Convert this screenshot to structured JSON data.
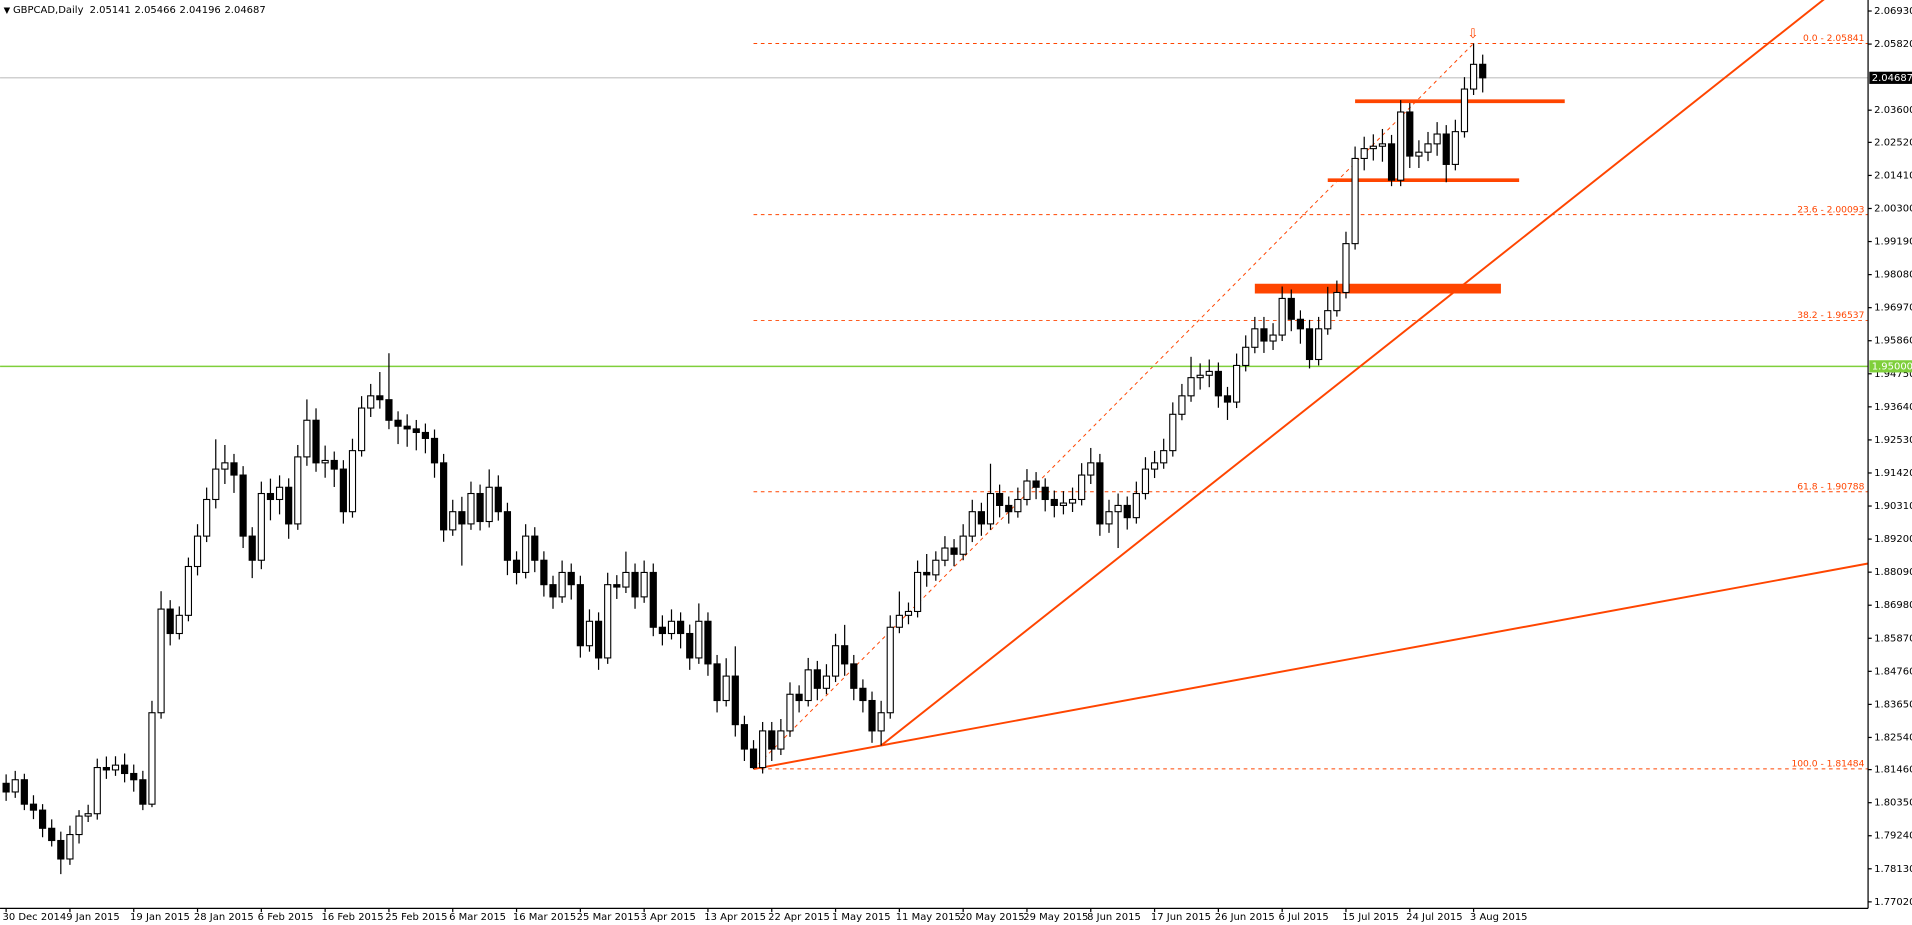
{
  "chart_data": {
    "type": "candlestick",
    "symbol": "GBPCAD,Daily",
    "ylim": [
      1.768,
      2.073
    ],
    "yticks": [
      {
        "value": 2.0693,
        "label": "2.06930"
      },
      {
        "value": 2.0582,
        "label": "2.05820"
      },
      {
        "value": 2.036,
        "label": "2.03600"
      },
      {
        "value": 2.0252,
        "label": "2.02520"
      },
      {
        "value": 2.0141,
        "label": "2.01410"
      },
      {
        "value": 2.003,
        "label": "2.00300"
      },
      {
        "value": 1.9919,
        "label": "1.99190"
      },
      {
        "value": 1.9808,
        "label": "1.98080"
      },
      {
        "value": 1.9697,
        "label": "1.96970"
      },
      {
        "value": 1.9586,
        "label": "1.95860"
      },
      {
        "value": 1.9475,
        "label": "1.94750"
      },
      {
        "value": 1.9364,
        "label": "1.93640"
      },
      {
        "value": 1.9253,
        "label": "1.92530"
      },
      {
        "value": 1.9142,
        "label": "1.91420"
      },
      {
        "value": 1.9031,
        "label": "1.90310"
      },
      {
        "value": 1.892,
        "label": "1.89200"
      },
      {
        "value": 1.8809,
        "label": "1.88090"
      },
      {
        "value": 1.8698,
        "label": "1.86980"
      },
      {
        "value": 1.8587,
        "label": "1.85870"
      },
      {
        "value": 1.8476,
        "label": "1.84760"
      },
      {
        "value": 1.8365,
        "label": "1.83650"
      },
      {
        "value": 1.8254,
        "label": "1.82540"
      },
      {
        "value": 1.8146,
        "label": "1.81460"
      },
      {
        "value": 1.8035,
        "label": "1.80350"
      },
      {
        "value": 1.7924,
        "label": "1.79240"
      },
      {
        "value": 1.7813,
        "label": "1.78130"
      },
      {
        "value": 1.7702,
        "label": "1.77020"
      }
    ],
    "xticks": [
      {
        "value": 0,
        "label": "30 Dec 2014"
      },
      {
        "value": 7,
        "label": "9 Jan 2015"
      },
      {
        "value": 14,
        "label": "19 Jan 2015"
      },
      {
        "value": 21,
        "label": "28 Jan 2015"
      },
      {
        "value": 28,
        "label": "6 Feb 2015"
      },
      {
        "value": 35,
        "label": "16 Feb 2015"
      },
      {
        "value": 42,
        "label": "25 Feb 2015"
      },
      {
        "value": 49,
        "label": "6 Mar 2015"
      },
      {
        "value": 56,
        "label": "16 Mar 2015"
      },
      {
        "value": 63,
        "label": "25 Mar 2015"
      },
      {
        "value": 70,
        "label": "3 Apr 2015"
      },
      {
        "value": 77,
        "label": "13 Apr 2015"
      },
      {
        "value": 84,
        "label": "22 Apr 2015"
      },
      {
        "value": 91,
        "label": "1 May 2015"
      },
      {
        "value": 98,
        "label": "11 May 2015"
      },
      {
        "value": 105,
        "label": "20 May 2015"
      },
      {
        "value": 112,
        "label": "29 May 2015"
      },
      {
        "value": 119,
        "label": "8 Jun 2015"
      },
      {
        "value": 126,
        "label": "17 Jun 2015"
      },
      {
        "value": 133,
        "label": "26 Jun 2015"
      },
      {
        "value": 140,
        "label": "6 Jul 2015"
      },
      {
        "value": 147,
        "label": "15 Jul 2015"
      },
      {
        "value": 154,
        "label": "24 Jul 2015"
      },
      {
        "value": 161,
        "label": "3 Aug 2015"
      }
    ],
    "up_color": "#ffffff",
    "down_color": "#000000",
    "ohlc": [
      [
        1.81,
        1.813,
        1.8041,
        1.8071
      ],
      [
        1.8071,
        1.8142,
        1.8051,
        1.8112
      ],
      [
        1.8112,
        1.8132,
        1.801,
        1.803
      ],
      [
        1.803,
        1.806,
        1.798,
        1.801
      ],
      [
        1.801,
        1.803,
        1.7919,
        1.7949
      ],
      [
        1.7949,
        1.7979,
        1.7888,
        1.7908
      ],
      [
        1.7908,
        1.7938,
        1.7795,
        1.7846
      ],
      [
        1.7846,
        1.7958,
        1.7826,
        1.7928
      ],
      [
        1.7928,
        1.801,
        1.7898,
        1.799
      ],
      [
        1.799,
        1.8028,
        1.797,
        1.7998
      ],
      [
        1.7998,
        1.8183,
        1.7978,
        1.8153
      ],
      [
        1.8153,
        1.819,
        1.8115,
        1.8145
      ],
      [
        1.8145,
        1.8191,
        1.8125,
        1.8161
      ],
      [
        1.8161,
        1.82,
        1.8103,
        1.8133
      ],
      [
        1.8133,
        1.8163,
        1.8072,
        1.8112
      ],
      [
        1.8112,
        1.8142,
        1.801,
        1.803
      ],
      [
        1.803,
        1.8377,
        1.802,
        1.8337
      ],
      [
        1.8337,
        1.8745,
        1.8317,
        1.8685
      ],
      [
        1.8685,
        1.8715,
        1.8563,
        1.8603
      ],
      [
        1.8603,
        1.8694,
        1.8583,
        1.8664
      ],
      [
        1.8664,
        1.8858,
        1.8644,
        1.8828
      ],
      [
        1.8828,
        1.897,
        1.8798,
        1.893
      ],
      [
        1.893,
        1.9093,
        1.891,
        1.9053
      ],
      [
        1.9053,
        1.9255,
        1.9023,
        1.9155
      ],
      [
        1.9155,
        1.9236,
        1.9105,
        1.9176
      ],
      [
        1.9176,
        1.9206,
        1.9075,
        1.9135
      ],
      [
        1.9135,
        1.9165,
        1.889,
        1.893
      ],
      [
        1.893,
        1.896,
        1.8789,
        1.8849
      ],
      [
        1.8849,
        1.9113,
        1.8819,
        1.9073
      ],
      [
        1.9073,
        1.9123,
        1.8983,
        1.9053
      ],
      [
        1.9053,
        1.9134,
        1.9003,
        1.9094
      ],
      [
        1.9094,
        1.9124,
        1.8921,
        1.8971
      ],
      [
        1.8971,
        1.9236,
        1.8951,
        1.9196
      ],
      [
        1.9196,
        1.9389,
        1.9166,
        1.9319
      ],
      [
        1.9319,
        1.9359,
        1.9146,
        1.9176
      ],
      [
        1.9176,
        1.9234,
        1.9126,
        1.9184
      ],
      [
        1.9184,
        1.9214,
        1.9095,
        1.9155
      ],
      [
        1.9155,
        1.9185,
        1.8972,
        1.9012
      ],
      [
        1.9012,
        1.9257,
        1.8992,
        1.9217
      ],
      [
        1.9217,
        1.94,
        1.9197,
        1.936
      ],
      [
        1.936,
        1.9441,
        1.933,
        1.9401
      ],
      [
        1.9401,
        1.9481,
        1.9358,
        1.9388
      ],
      [
        1.9388,
        1.9544,
        1.9289,
        1.9319
      ],
      [
        1.9319,
        1.9349,
        1.9239,
        1.9299
      ],
      [
        1.9299,
        1.9339,
        1.923,
        1.929
      ],
      [
        1.929,
        1.932,
        1.9218,
        1.9278
      ],
      [
        1.9278,
        1.9308,
        1.9208,
        1.9258
      ],
      [
        1.9258,
        1.9288,
        1.9126,
        1.9176
      ],
      [
        1.9176,
        1.9206,
        1.8911,
        1.8951
      ],
      [
        1.8951,
        1.9052,
        1.8931,
        1.9012
      ],
      [
        1.9012,
        1.9062,
        1.8831,
        1.8971
      ],
      [
        1.8971,
        1.9113,
        1.8951,
        1.9073
      ],
      [
        1.9073,
        1.9103,
        1.8949,
        1.8979
      ],
      [
        1.8979,
        1.9154,
        1.8959,
        1.9094
      ],
      [
        1.9094,
        1.9134,
        1.8982,
        1.9012
      ],
      [
        1.9012,
        1.9042,
        1.8799,
        1.8849
      ],
      [
        1.8849,
        1.8879,
        1.8768,
        1.8808
      ],
      [
        1.8808,
        1.897,
        1.8788,
        1.893
      ],
      [
        1.893,
        1.896,
        1.8809,
        1.8849
      ],
      [
        1.8849,
        1.8879,
        1.8727,
        1.8767
      ],
      [
        1.8767,
        1.8797,
        1.8686,
        1.8726
      ],
      [
        1.8726,
        1.8848,
        1.8706,
        1.8808
      ],
      [
        1.8808,
        1.8838,
        1.8717,
        1.8767
      ],
      [
        1.8767,
        1.8797,
        1.8522,
        1.8562
      ],
      [
        1.8562,
        1.8684,
        1.8542,
        1.8644
      ],
      [
        1.8644,
        1.8674,
        1.8481,
        1.8521
      ],
      [
        1.8521,
        1.8807,
        1.8501,
        1.8767
      ],
      [
        1.8767,
        1.8799,
        1.8719,
        1.8759
      ],
      [
        1.8759,
        1.8878,
        1.8739,
        1.8808
      ],
      [
        1.8808,
        1.8838,
        1.8686,
        1.8726
      ],
      [
        1.8726,
        1.8848,
        1.8706,
        1.8808
      ],
      [
        1.8808,
        1.8838,
        1.8594,
        1.8624
      ],
      [
        1.8624,
        1.8664,
        1.8563,
        1.8603
      ],
      [
        1.8603,
        1.8684,
        1.8583,
        1.8644
      ],
      [
        1.8644,
        1.8674,
        1.8553,
        1.8603
      ],
      [
        1.8603,
        1.8633,
        1.8481,
        1.8521
      ],
      [
        1.8521,
        1.8704,
        1.8501,
        1.8644
      ],
      [
        1.8644,
        1.8674,
        1.8461,
        1.8501
      ],
      [
        1.8501,
        1.8531,
        1.8338,
        1.8378
      ],
      [
        1.8378,
        1.852,
        1.8358,
        1.846
      ],
      [
        1.846,
        1.856,
        1.8257,
        1.8297
      ],
      [
        1.8297,
        1.8327,
        1.8175,
        1.8215
      ],
      [
        1.8215,
        1.8245,
        1.8148,
        1.8153
      ],
      [
        1.8153,
        1.8306,
        1.8133,
        1.8276
      ],
      [
        1.8276,
        1.8306,
        1.8175,
        1.8215
      ],
      [
        1.8215,
        1.8316,
        1.8195,
        1.8276
      ],
      [
        1.8276,
        1.8439,
        1.8256,
        1.8399
      ],
      [
        1.8399,
        1.8429,
        1.8338,
        1.8378
      ],
      [
        1.8378,
        1.8521,
        1.8358,
        1.8481
      ],
      [
        1.8481,
        1.8511,
        1.8379,
        1.8419
      ],
      [
        1.8419,
        1.85,
        1.8399,
        1.846
      ],
      [
        1.846,
        1.8602,
        1.844,
        1.8562
      ],
      [
        1.8562,
        1.8632,
        1.8461,
        1.8501
      ],
      [
        1.8501,
        1.8531,
        1.8379,
        1.8419
      ],
      [
        1.8419,
        1.8449,
        1.8338,
        1.8378
      ],
      [
        1.8378,
        1.8408,
        1.8236,
        1.8276
      ],
      [
        1.8276,
        1.8377,
        1.8227,
        1.8337
      ],
      [
        1.8337,
        1.8664,
        1.8317,
        1.8624
      ],
      [
        1.8624,
        1.8744,
        1.8604,
        1.8664
      ],
      [
        1.8664,
        1.8707,
        1.8634,
        1.8677
      ],
      [
        1.8677,
        1.8848,
        1.8657,
        1.8808
      ],
      [
        1.8808,
        1.887,
        1.876,
        1.88
      ],
      [
        1.88,
        1.8879,
        1.878,
        1.8849
      ],
      [
        1.8849,
        1.893,
        1.8829,
        1.889
      ],
      [
        1.889,
        1.892,
        1.8829,
        1.8869
      ],
      [
        1.8869,
        1.897,
        1.8849,
        1.893
      ],
      [
        1.893,
        1.9052,
        1.891,
        1.9012
      ],
      [
        1.9012,
        1.9042,
        1.8931,
        1.8971
      ],
      [
        1.8971,
        1.9173,
        1.8951,
        1.9073
      ],
      [
        1.9073,
        1.9103,
        1.8993,
        1.9033
      ],
      [
        1.9033,
        1.9063,
        1.8972,
        1.9012
      ],
      [
        1.9012,
        1.9093,
        1.8992,
        1.9053
      ],
      [
        1.9053,
        1.9155,
        1.9033,
        1.9115
      ],
      [
        1.9115,
        1.9145,
        1.9054,
        1.9094
      ],
      [
        1.9094,
        1.9124,
        1.9013,
        1.9053
      ],
      [
        1.9053,
        1.9083,
        1.8993,
        1.9033
      ],
      [
        1.9033,
        1.9081,
        1.9003,
        1.9041
      ],
      [
        1.9041,
        1.9093,
        1.9011,
        1.9053
      ],
      [
        1.9053,
        1.9175,
        1.9033,
        1.9135
      ],
      [
        1.9135,
        1.9226,
        1.9105,
        1.9176
      ],
      [
        1.9176,
        1.9206,
        1.8931,
        1.8971
      ],
      [
        1.8971,
        1.9052,
        1.8941,
        1.9012
      ],
      [
        1.9012,
        1.9073,
        1.889,
        1.9033
      ],
      [
        1.9033,
        1.9063,
        1.8952,
        1.8992
      ],
      [
        1.8992,
        1.9113,
        1.8972,
        1.9073
      ],
      [
        1.9073,
        1.9195,
        1.9053,
        1.9155
      ],
      [
        1.9155,
        1.9216,
        1.9125,
        1.9176
      ],
      [
        1.9176,
        1.9257,
        1.9156,
        1.9217
      ],
      [
        1.9217,
        1.9379,
        1.9197,
        1.9339
      ],
      [
        1.9339,
        1.9441,
        1.9319,
        1.9401
      ],
      [
        1.9401,
        1.9532,
        1.9381,
        1.9462
      ],
      [
        1.9462,
        1.951,
        1.9422,
        1.947
      ],
      [
        1.947,
        1.9523,
        1.943,
        1.9483
      ],
      [
        1.9483,
        1.9513,
        1.9361,
        1.9401
      ],
      [
        1.9401,
        1.9431,
        1.932,
        1.938
      ],
      [
        1.938,
        1.9543,
        1.936,
        1.9503
      ],
      [
        1.9503,
        1.9604,
        1.9483,
        1.9564
      ],
      [
        1.9564,
        1.9666,
        1.9544,
        1.9626
      ],
      [
        1.9626,
        1.9666,
        1.9545,
        1.9585
      ],
      [
        1.9585,
        1.9645,
        1.9555,
        1.9605
      ],
      [
        1.9605,
        1.9768,
        1.9585,
        1.9728
      ],
      [
        1.9728,
        1.9758,
        1.9618,
        1.9658
      ],
      [
        1.9658,
        1.9688,
        1.9576,
        1.9626
      ],
      [
        1.9626,
        1.9656,
        1.9493,
        1.9523
      ],
      [
        1.9523,
        1.9666,
        1.9503,
        1.9626
      ],
      [
        1.9626,
        1.9767,
        1.9606,
        1.9687
      ],
      [
        1.9687,
        1.9788,
        1.9667,
        1.9748
      ],
      [
        1.9748,
        1.9952,
        1.9728,
        1.9912
      ],
      [
        1.9912,
        2.0238,
        1.9892,
        2.0198
      ],
      [
        2.0198,
        2.0271,
        2.0158,
        2.0231
      ],
      [
        2.0231,
        2.0279,
        2.0191,
        2.0239
      ],
      [
        2.0239,
        2.0297,
        2.0187,
        2.0247
      ],
      [
        2.0247,
        2.0277,
        2.0105,
        2.0125
      ],
      [
        2.0125,
        2.0394,
        2.0105,
        2.0354
      ],
      [
        2.0354,
        2.0384,
        2.0166,
        2.0206
      ],
      [
        2.0206,
        2.0259,
        2.0166,
        2.0219
      ],
      [
        2.0219,
        2.0287,
        2.0189,
        2.0247
      ],
      [
        2.0247,
        2.032,
        2.0207,
        2.028
      ],
      [
        2.028,
        2.031,
        2.0118,
        2.0178
      ],
      [
        2.0178,
        2.0328,
        2.0158,
        2.0288
      ],
      [
        2.0288,
        2.0471,
        2.0268,
        2.0431
      ],
      [
        2.0431,
        2.0584,
        2.0411,
        2.0514
      ],
      [
        2.05141,
        2.05466,
        2.04196,
        2.04687
      ]
    ],
    "price_line_color": "#c0c0c0",
    "hlines": [
      {
        "value": 1.95,
        "label": "1.95000",
        "color": "#7fcf3b"
      }
    ],
    "fib": {
      "color": "#ff4500",
      "from": [
        82,
        1.81484
      ],
      "to": [
        161,
        2.05841
      ],
      "levels": [
        {
          "value": 2.05841,
          "label": "0.0 - 2.05841"
        },
        {
          "value": 2.00093,
          "label": "23.6 - 2.00093"
        },
        {
          "value": 1.96537,
          "label": "38.2 - 1.96537"
        },
        {
          "value": 1.90788,
          "label": "61.8 - 1.90788"
        },
        {
          "value": 1.81484,
          "label": "100.0 - 1.81484"
        }
      ]
    },
    "trendlines": [
      {
        "x": [
          82,
          96
        ],
        "y": [
          1.8148,
          1.8227
        ],
        "color": "#ff4500"
      },
      {
        "x": [
          96,
          160
        ],
        "y": [
          1.8227,
          1.9777
        ],
        "color": "#ff4500"
      }
    ],
    "levels": [
      {
        "x": [
          148,
          171
        ],
        "y": 2.039,
        "color": "#ff4500",
        "weight": "normal"
      },
      {
        "x": [
          145,
          166
        ],
        "y": 2.0125,
        "color": "#ff4500",
        "weight": "normal"
      },
      {
        "x": [
          137,
          164
        ],
        "y": 1.9761,
        "color": "#ff4500",
        "weight": "bold"
      }
    ]
  }
}
